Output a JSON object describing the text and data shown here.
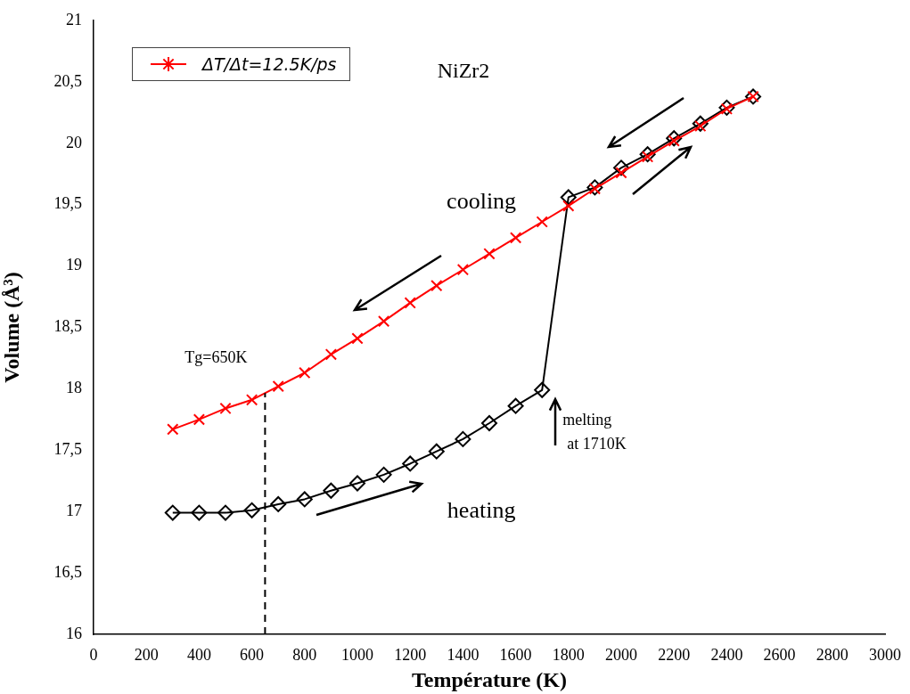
{
  "chart_data": {
    "type": "line",
    "xlabel": "Température (K)",
    "ylabel": "Volume (Å³)",
    "xlim": [
      0,
      3000
    ],
    "xticks": [
      0,
      200,
      400,
      600,
      800,
      1000,
      1200,
      1400,
      1600,
      1800,
      2000,
      2200,
      2400,
      2600,
      2800,
      3000
    ],
    "ylim": [
      16,
      21
    ],
    "yticks": [
      16,
      {
        "value": 16.5,
        "label": "16,5"
      },
      17,
      {
        "value": 17.5,
        "label": "17,5"
      },
      18,
      {
        "value": 18.5,
        "label": "18,5"
      },
      19,
      {
        "value": 19.5,
        "label": "19,5"
      },
      20,
      {
        "value": 20.5,
        "label": "20,5"
      },
      21
    ],
    "grid": false,
    "legend": "top left",
    "series": [
      {
        "name": "ΔT/Δt=12.5K/ps",
        "color": "#ff0000",
        "marker": "cross",
        "x": [
          300,
          400,
          500,
          600,
          700,
          800,
          900,
          1000,
          1100,
          1200,
          1300,
          1400,
          1500,
          1600,
          1700,
          1800,
          1900,
          2000,
          2100,
          2200,
          2300,
          2400,
          2500
        ],
        "values": [
          17.67,
          17.75,
          17.84,
          17.91,
          18.02,
          18.13,
          18.28,
          18.41,
          18.55,
          18.7,
          18.84,
          18.97,
          19.1,
          19.23,
          19.36,
          19.49,
          19.63,
          19.76,
          19.89,
          20.02,
          20.14,
          20.28,
          20.38
        ]
      },
      {
        "color": "#000000",
        "marker": "diamond",
        "x": [
          300,
          400,
          500,
          600,
          700,
          800,
          900,
          1000,
          1100,
          1200,
          1300,
          1400,
          1500,
          1600,
          1700,
          1800,
          1900,
          2000,
          2100,
          2200,
          2300,
          2400,
          2500
        ],
        "values": [
          16.99,
          16.99,
          16.99,
          17.01,
          17.06,
          17.1,
          17.17,
          17.23,
          17.3,
          17.39,
          17.49,
          17.59,
          17.72,
          17.86,
          17.99,
          19.56,
          19.64,
          19.8,
          19.91,
          20.04,
          20.16,
          20.29,
          20.38
        ]
      }
    ],
    "ref_lines": [
      {
        "axis": "x",
        "value": 650,
        "color": "#000000",
        "line_style": "dashed"
      }
    ],
    "annotations": [
      "NiZr2",
      "cooling",
      "heating",
      {
        "text": "Tg=650K",
        "x": 650,
        "y": 17.95
      },
      {
        "text": "melting at 1710K",
        "x": 1710,
        "y": 17.99
      }
    ]
  }
}
